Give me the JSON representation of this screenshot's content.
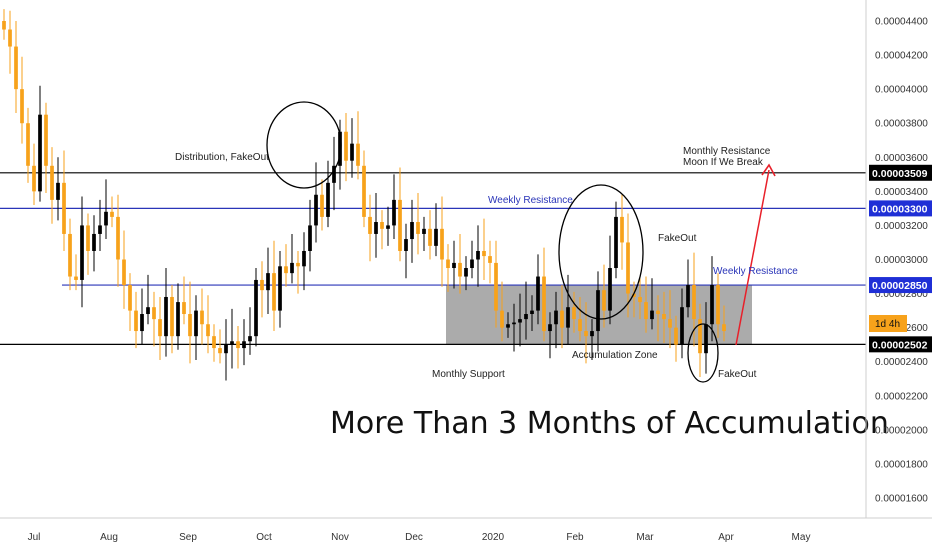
{
  "chart_data": {
    "type": "candlestick",
    "y_ticks": [
      "0.00004400",
      "0.00004200",
      "0.00004000",
      "0.00003800",
      "0.00003600",
      "0.00003400",
      "0.00003200",
      "0.00003000",
      "0.00002800",
      "0.00002600",
      "0.00002400",
      "0.00002200",
      "0.00002000",
      "0.00001800",
      "0.00001600"
    ],
    "x_ticks": [
      "Jul",
      "Aug",
      "Sep",
      "Oct",
      "Nov",
      "Dec",
      "2020",
      "Feb",
      "Mar",
      "Apr",
      "May"
    ],
    "colors": {
      "up": "#000000",
      "down": "#f7a21b",
      "zone": "#a6a6a6",
      "blue_line": "#2a35b8",
      "black_line": "#000000",
      "arrow": "#e8202a",
      "badge": "#000000",
      "blue_badge": "#1f2fd6",
      "interval": "#f7a21b"
    },
    "levels": [
      {
        "value": 3.509e-05,
        "label": "0.00003509",
        "color": "black"
      },
      {
        "value": 3.3e-05,
        "label": "0.00003300",
        "color": "blue"
      },
      {
        "value": 2.85e-05,
        "label": "0.00002850",
        "color": "blue"
      },
      {
        "value": 2.502e-05,
        "label": "0.00002502",
        "color": "black"
      }
    ],
    "interval_badge": "1d 4h",
    "zone": {
      "label": "Accumulation Zone",
      "from": 2.502e-05,
      "to": 2.85e-05
    },
    "annotations": {
      "distribution": "Distribution, FakeOut",
      "weekly_resistance_1": "Weekly Resistance",
      "weekly_resistance_2": "Weekly Resistance",
      "fakeout_top": "FakeOut",
      "fakeout_bottom": "FakeOut",
      "monthly_resistance_1": "Monthly Resistance",
      "monthly_resistance_2": "Moon If We Break",
      "monthly_support": "Monthly Support",
      "accumulation_zone": "Accumulation Zone",
      "headline": "More Than 3 Months of Accumulation"
    },
    "candles": [
      {
        "o": 4.4,
        "c": 4.35
      },
      {
        "o": 4.35,
        "c": 4.25
      },
      {
        "o": 4.25,
        "c": 4.0
      },
      {
        "o": 4.0,
        "c": 3.8
      },
      {
        "o": 3.8,
        "c": 3.55
      },
      {
        "o": 3.55,
        "c": 3.4
      },
      {
        "o": 3.4,
        "c": 3.85
      },
      {
        "o": 3.85,
        "c": 3.55
      },
      {
        "o": 3.55,
        "c": 3.35
      },
      {
        "o": 3.35,
        "c": 3.45
      },
      {
        "o": 3.45,
        "c": 3.15
      },
      {
        "o": 3.15,
        "c": 2.9
      },
      {
        "o": 2.9,
        "c": 2.88
      },
      {
        "o": 2.88,
        "c": 3.2
      },
      {
        "o": 3.2,
        "c": 3.05
      },
      {
        "o": 3.05,
        "c": 3.15
      },
      {
        "o": 3.15,
        "c": 3.2
      },
      {
        "o": 3.2,
        "c": 3.28
      },
      {
        "o": 3.28,
        "c": 3.25
      },
      {
        "o": 3.25,
        "c": 3.0
      },
      {
        "o": 3.0,
        "c": 2.85
      },
      {
        "o": 2.85,
        "c": 2.7
      },
      {
        "o": 2.7,
        "c": 2.58
      },
      {
        "o": 2.58,
        "c": 2.68
      },
      {
        "o": 2.68,
        "c": 2.72
      },
      {
        "o": 2.72,
        "c": 2.65
      },
      {
        "o": 2.65,
        "c": 2.55
      },
      {
        "o": 2.55,
        "c": 2.78
      },
      {
        "o": 2.78,
        "c": 2.55
      },
      {
        "o": 2.55,
        "c": 2.75
      },
      {
        "o": 2.75,
        "c": 2.68
      },
      {
        "o": 2.68,
        "c": 2.55
      },
      {
        "o": 2.55,
        "c": 2.7
      },
      {
        "o": 2.7,
        "c": 2.62
      },
      {
        "o": 2.62,
        "c": 2.55
      },
      {
        "o": 2.55,
        "c": 2.48
      },
      {
        "o": 2.48,
        "c": 2.45
      },
      {
        "o": 2.45,
        "c": 2.5
      },
      {
        "o": 2.5,
        "c": 2.52
      },
      {
        "o": 2.52,
        "c": 2.48
      },
      {
        "o": 2.48,
        "c": 2.52
      },
      {
        "o": 2.52,
        "c": 2.55
      },
      {
        "o": 2.55,
        "c": 2.88
      },
      {
        "o": 2.88,
        "c": 2.82
      },
      {
        "o": 2.82,
        "c": 2.92
      },
      {
        "o": 2.92,
        "c": 2.7
      },
      {
        "o": 2.7,
        "c": 2.96
      },
      {
        "o": 2.96,
        "c": 2.92
      },
      {
        "o": 2.92,
        "c": 2.98
      },
      {
        "o": 2.98,
        "c": 2.96
      },
      {
        "o": 2.96,
        "c": 3.05
      },
      {
        "o": 3.05,
        "c": 3.2
      },
      {
        "o": 3.2,
        "c": 3.38
      },
      {
        "o": 3.38,
        "c": 3.25
      },
      {
        "o": 3.25,
        "c": 3.45
      },
      {
        "o": 3.45,
        "c": 3.55
      },
      {
        "o": 3.55,
        "c": 3.75
      },
      {
        "o": 3.75,
        "c": 3.58
      },
      {
        "o": 3.58,
        "c": 3.68
      },
      {
        "o": 3.68,
        "c": 3.55
      },
      {
        "o": 3.55,
        "c": 3.25
      },
      {
        "o": 3.25,
        "c": 3.15
      },
      {
        "o": 3.15,
        "c": 3.22
      },
      {
        "o": 3.22,
        "c": 3.18
      },
      {
        "o": 3.18,
        "c": 3.2
      },
      {
        "o": 3.2,
        "c": 3.35
      },
      {
        "o": 3.35,
        "c": 3.05
      },
      {
        "o": 3.05,
        "c": 3.12
      },
      {
        "o": 3.12,
        "c": 3.22
      },
      {
        "o": 3.22,
        "c": 3.15
      },
      {
        "o": 3.15,
        "c": 3.18
      },
      {
        "o": 3.18,
        "c": 3.08
      },
      {
        "o": 3.08,
        "c": 3.18
      },
      {
        "o": 3.18,
        "c": 3.0
      },
      {
        "o": 3.0,
        "c": 2.95
      },
      {
        "o": 2.95,
        "c": 2.98
      },
      {
        "o": 2.98,
        "c": 2.9
      },
      {
        "o": 2.9,
        "c": 2.95
      },
      {
        "o": 2.95,
        "c": 3.0
      },
      {
        "o": 3.0,
        "c": 3.05
      },
      {
        "o": 3.05,
        "c": 3.02
      },
      {
        "o": 3.02,
        "c": 2.98
      },
      {
        "o": 2.98,
        "c": 2.7
      },
      {
        "o": 2.7,
        "c": 2.6
      },
      {
        "o": 2.6,
        "c": 2.62
      },
      {
        "o": 2.62,
        "c": 2.63
      },
      {
        "o": 2.63,
        "c": 2.65
      },
      {
        "o": 2.65,
        "c": 2.68
      },
      {
        "o": 2.68,
        "c": 2.7
      },
      {
        "o": 2.7,
        "c": 2.9
      },
      {
        "o": 2.9,
        "c": 2.58
      },
      {
        "o": 2.58,
        "c": 2.62
      },
      {
        "o": 2.62,
        "c": 2.7
      },
      {
        "o": 2.7,
        "c": 2.6
      },
      {
        "o": 2.6,
        "c": 2.72
      },
      {
        "o": 2.72,
        "c": 2.65
      },
      {
        "o": 2.65,
        "c": 2.58
      },
      {
        "o": 2.58,
        "c": 2.55
      },
      {
        "o": 2.55,
        "c": 2.58
      },
      {
        "o": 2.58,
        "c": 2.82
      },
      {
        "o": 2.82,
        "c": 2.7
      },
      {
        "o": 2.7,
        "c": 2.95
      },
      {
        "o": 2.95,
        "c": 3.25
      },
      {
        "o": 3.25,
        "c": 3.1
      },
      {
        "o": 3.1,
        "c": 2.8
      },
      {
        "o": 2.8,
        "c": 2.78
      },
      {
        "o": 2.78,
        "c": 2.75
      },
      {
        "o": 2.75,
        "c": 2.65
      },
      {
        "o": 2.65,
        "c": 2.7
      },
      {
        "o": 2.7,
        "c": 2.68
      },
      {
        "o": 2.68,
        "c": 2.65
      },
      {
        "o": 2.65,
        "c": 2.6
      },
      {
        "o": 2.6,
        "c": 2.5
      },
      {
        "o": 2.5,
        "c": 2.72
      },
      {
        "o": 2.72,
        "c": 2.85
      },
      {
        "o": 2.85,
        "c": 2.65
      },
      {
        "o": 2.65,
        "c": 2.45
      },
      {
        "o": 2.45,
        "c": 2.62
      },
      {
        "o": 2.62,
        "c": 2.85
      },
      {
        "o": 2.85,
        "c": 2.62
      },
      {
        "o": 2.62,
        "c": 2.58
      }
    ]
  }
}
